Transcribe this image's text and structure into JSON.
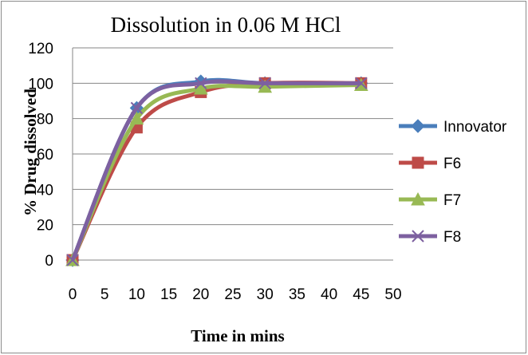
{
  "chart_data": {
    "type": "line",
    "title": "Dissolution in 0.06 M HCl",
    "xlabel": "Time in mins",
    "ylabel": "% Drug dissolved",
    "x": [
      0,
      10,
      20,
      30,
      45
    ],
    "xlim": [
      0,
      50
    ],
    "ylim": [
      0,
      120
    ],
    "xticks": [
      0,
      5,
      10,
      15,
      20,
      25,
      30,
      35,
      40,
      45,
      50
    ],
    "yticks": [
      0,
      20,
      40,
      60,
      80,
      100,
      120
    ],
    "grid": "horizontal",
    "legend_position": "right",
    "smooth": true,
    "series": [
      {
        "name": "Innovator",
        "values": [
          0,
          86,
          101,
          100,
          100
        ],
        "color": "#4a7ebb",
        "marker": "diamond"
      },
      {
        "name": "F6",
        "values": [
          0,
          75,
          95,
          100,
          100
        ],
        "color": "#be4b48",
        "marker": "square"
      },
      {
        "name": "F7",
        "values": [
          0,
          80,
          97,
          98,
          99
        ],
        "color": "#98b954",
        "marker": "triangle"
      },
      {
        "name": "F8",
        "values": [
          0,
          86,
          100,
          100,
          100
        ],
        "color": "#7d60a0",
        "marker": "x"
      }
    ]
  }
}
